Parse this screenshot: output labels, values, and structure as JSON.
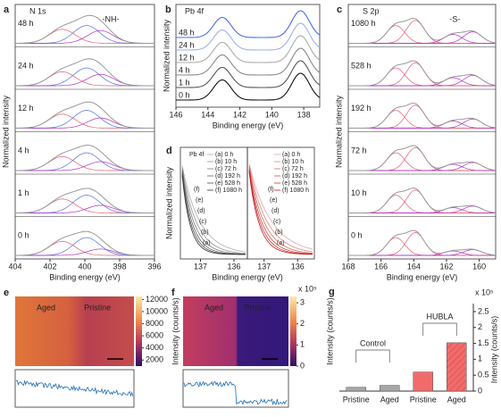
{
  "panels": {
    "a": {
      "letter": "a",
      "title": "N 1s",
      "xlim": [
        404,
        396
      ],
      "xticks": [
        404,
        402,
        400,
        398,
        396
      ],
      "xlabel": "Binding energy (eV)",
      "ylabel": "Normalized intensity",
      "traces": [
        "48 h",
        "24 h",
        "12 h",
        "4 h",
        "1 h",
        "0 h"
      ],
      "peaks": [
        401.3,
        399.9,
        399.1
      ],
      "annotation": "-NH-"
    },
    "b": {
      "letter": "b",
      "title": "Pb 4f",
      "xlim": [
        146,
        137
      ],
      "xticks": [
        146,
        144,
        142,
        140,
        138
      ],
      "xlabel": "Binding energy (eV)",
      "ylabel": "Normalized intensity",
      "traces": [
        "48 h",
        "24 h",
        "12 h",
        "4 h",
        "1 h",
        "0 h"
      ],
      "peaks": [
        143.1,
        138.2
      ]
    },
    "c": {
      "letter": "c",
      "title": "S 2p",
      "xlim": [
        168,
        159
      ],
      "xticks": [
        168,
        166,
        164,
        162,
        160
      ],
      "xlabel": "Binding energy (eV)",
      "ylabel": "Normalized intensity",
      "traces": [
        "1080 h",
        "528 h",
        "192 h",
        "72 h",
        "10 h",
        "0 h"
      ],
      "peaks": [
        165.1,
        163.9,
        161.6,
        160.4
      ],
      "annotation": "-S-"
    },
    "d": {
      "letter": "d",
      "title": "Pb 4f",
      "xlabel": "Binding energy (eV)",
      "ylabel": "Normalized intensity",
      "left": {
        "xlim": [
          137.6,
          135.6
        ],
        "xticks": [
          137,
          136
        ],
        "legend": [
          "(a) 0 h",
          "(b) 10 h",
          "(c) 72 h",
          "(d) 192 h",
          "(e) 528 h",
          "(f) 1080 h"
        ],
        "curve_labels": [
          "(a)",
          "(b)",
          "(c)",
          "(d)",
          "(e)",
          "(f)"
        ]
      },
      "right": {
        "xlim": [
          137.5,
          135.5
        ],
        "xticks": [
          137,
          136
        ],
        "legend": [
          "(a) 0 h",
          "(b) 10 h",
          "(c) 72 h",
          "(d) 192 h",
          "(e) 528 h",
          "(f) 1080 h"
        ],
        "curve_labels": [
          "(a)",
          "(b)",
          "(c)",
          "(d)",
          "(e)",
          "(f)"
        ]
      }
    },
    "e": {
      "letter": "e",
      "labels": [
        "Aged",
        "Pristine"
      ],
      "clim": [
        1000,
        12500
      ],
      "cticks": [
        12000,
        10000,
        8000,
        6000,
        4000,
        2000
      ],
      "clabel": "Intensity (counts/s)"
    },
    "f": {
      "letter": "f",
      "labels": [
        "Aged",
        "Pristine"
      ],
      "clim": [
        0,
        3.3
      ],
      "cticks": [
        3,
        2,
        1,
        0
      ],
      "multiplier": "x 10⁵",
      "clabel": "Intensity (counts/s)"
    }
  },
  "chart_data": {
    "type": "bar",
    "letter": "g",
    "categories": [
      "Pristine",
      "Aged",
      "Pristine",
      "Aged"
    ],
    "groups": [
      "Control",
      "HUBLA"
    ],
    "values": [
      0.12,
      0.18,
      0.6,
      1.52
    ],
    "colors": [
      "#a6a6a6",
      "#a6a6a6",
      "#f26b6b",
      "#f26b6b"
    ],
    "ylim": [
      0,
      2.75
    ],
    "yticks": [
      0,
      0.5,
      1,
      1.5,
      2,
      2.5
    ],
    "multiplier": "x 10⁵",
    "ylabel": "Intensity (counts/s)"
  }
}
